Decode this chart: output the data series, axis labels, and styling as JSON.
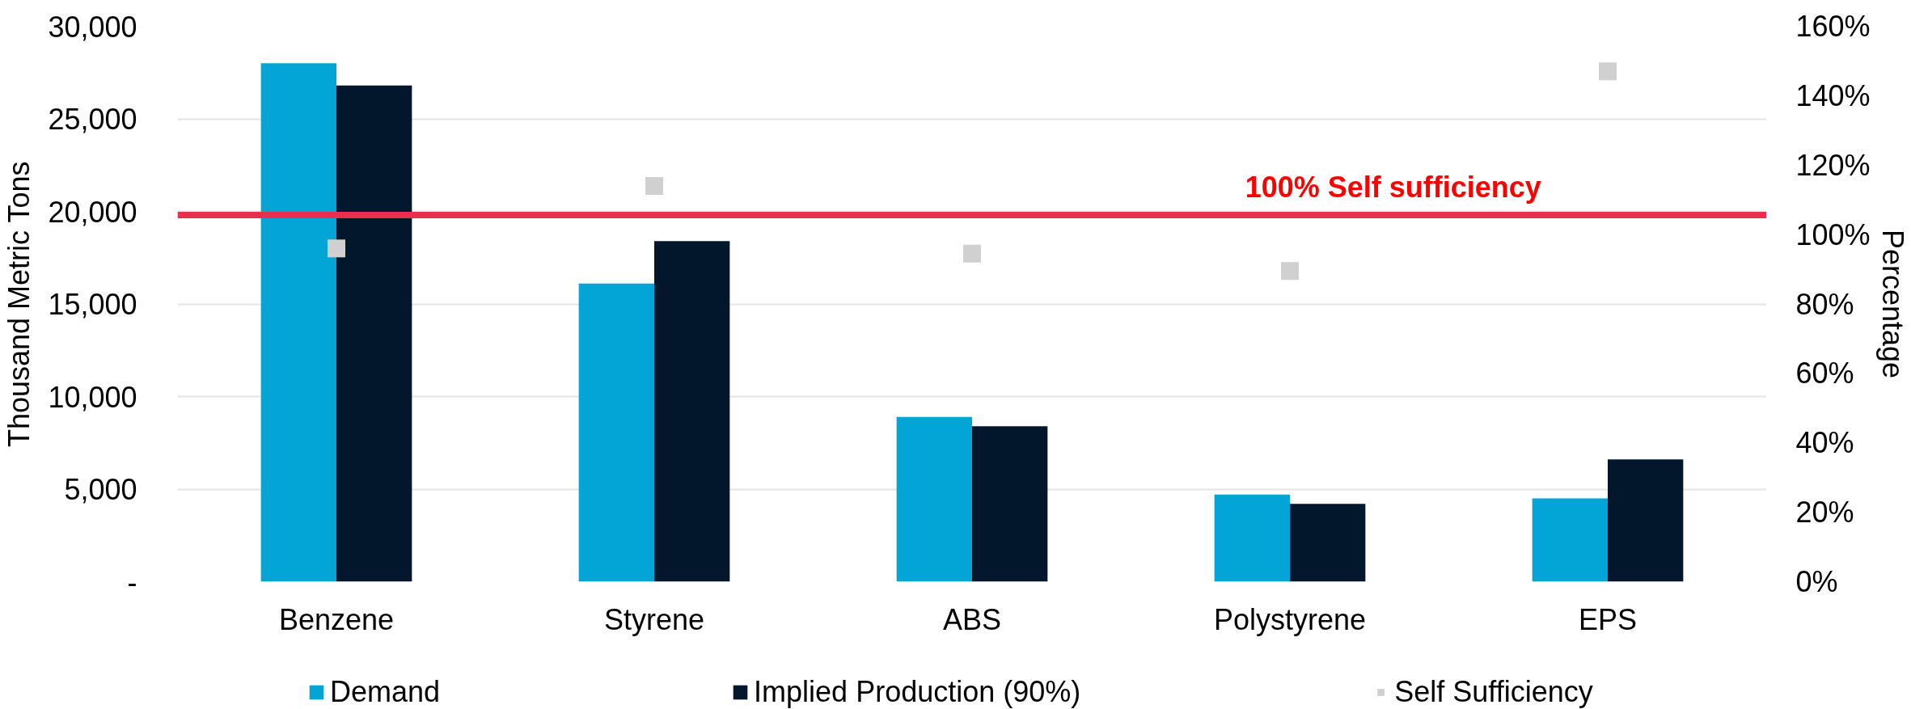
{
  "chart_data": {
    "type": "bar",
    "categories": [
      "Benzene",
      "Styrene",
      "ABS",
      "Polystyrene",
      "EPS"
    ],
    "series": [
      {
        "name": "Demand",
        "color": "#02a5d5",
        "values": [
          28000,
          16100,
          8900,
          4700,
          4500
        ]
      },
      {
        "name": "Implied Production (90%)",
        "color": "#02172b",
        "values": [
          26800,
          18400,
          8400,
          4200,
          6600
        ]
      },
      {
        "name": "Self Sufficiency",
        "type": "scatter",
        "marker": "square",
        "axis": "y2",
        "color": "#d0d0d0",
        "values": [
          96,
          114,
          94.5,
          89.5,
          147
        ]
      }
    ],
    "ylabel": "Thousand Metric Tons",
    "y2label": "Percentage",
    "ylim": [
      0,
      30000
    ],
    "yticks": [
      {
        "value": 0,
        "label": "-"
      },
      {
        "value": 5000,
        "label": "5,000"
      },
      {
        "value": 10000,
        "label": "10,000"
      },
      {
        "value": 15000,
        "label": "15,000"
      },
      {
        "value": 20000,
        "label": "20,000"
      },
      {
        "value": 25000,
        "label": "25,000"
      },
      {
        "value": 30000,
        "label": "30,000"
      }
    ],
    "y2lim": [
      0,
      160
    ],
    "y2ticks": [
      {
        "value": 0,
        "label": "0%"
      },
      {
        "value": 20,
        "label": "20%"
      },
      {
        "value": 40,
        "label": "40%"
      },
      {
        "value": 60,
        "label": "60%"
      },
      {
        "value": 80,
        "label": "80%"
      },
      {
        "value": 100,
        "label": "100%"
      },
      {
        "value": 120,
        "label": "120%"
      },
      {
        "value": 140,
        "label": "140%"
      },
      {
        "value": 160,
        "label": "160%"
      }
    ],
    "grid": "y",
    "legend": "bottom",
    "ref_lines": [
      {
        "axis": "y",
        "value": 19800,
        "label": "100% Self sufficiency",
        "color": "#e8304e"
      }
    ]
  }
}
